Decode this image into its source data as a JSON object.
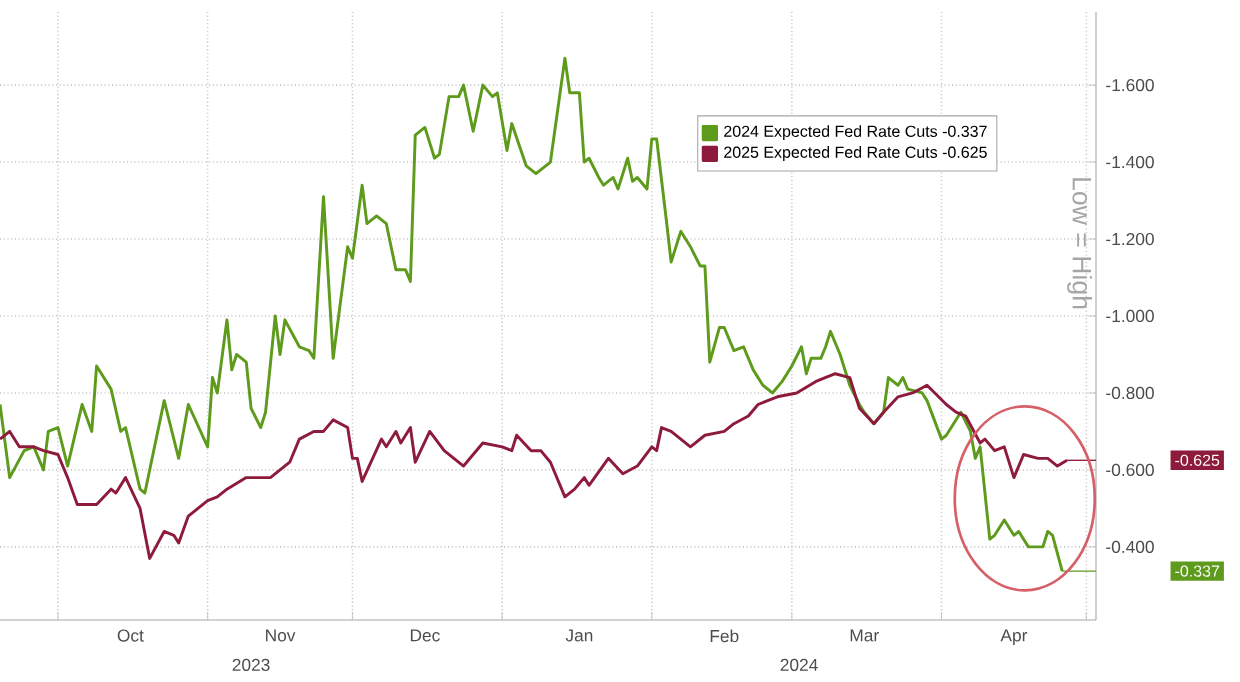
{
  "chart_data": {
    "type": "line",
    "xlim": [
      "2023-09-19",
      "2024-05-03"
    ],
    "ylim": [
      -0.21,
      -1.79
    ],
    "xticks": [
      {
        "value": "2023-10-01",
        "label": null
      },
      {
        "value": "2023-11-01",
        "label": null
      },
      {
        "value": "2023-12-01",
        "label": null
      },
      {
        "value": "2024-01-01",
        "label": null
      },
      {
        "value": "2024-02-01",
        "label": null
      },
      {
        "value": "2024-03-01",
        "label": null
      },
      {
        "value": "2024-04-01",
        "label": null
      },
      {
        "value": "2024-05-01",
        "label": null
      },
      {
        "value": "2023-10-16",
        "label": "Oct"
      },
      {
        "value": "2023-11-16",
        "label": "Nov"
      },
      {
        "value": "2023-12-16",
        "label": "Dec"
      },
      {
        "value": "2024-01-17",
        "label": "Jan"
      },
      {
        "value": "2024-02-16",
        "label": "Feb"
      },
      {
        "value": "2024-03-16",
        "label": "Mar"
      },
      {
        "value": "2024-04-16",
        "label": "Apr"
      }
    ],
    "yticks": [
      {
        "value": -1.6,
        "label": "-1.600"
      },
      {
        "value": -1.4,
        "label": "-1.400"
      },
      {
        "value": -1.2,
        "label": "-1.200"
      },
      {
        "value": -1.0,
        "label": "-1.000"
      },
      {
        "value": -0.8,
        "label": "-0.800"
      },
      {
        "value": -0.6,
        "label": "-0.600"
      },
      {
        "value": -0.4,
        "label": "-0.400"
      }
    ],
    "grid": true,
    "legend": "top right",
    "series": [
      {
        "name": "2024 Expected Fed Rate Cuts  -0.337",
        "color": "#5e9a1c",
        "x": [
          "2023-09-19",
          "2023-09-21",
          "2023-09-24",
          "2023-09-26",
          "2023-09-28",
          "2023-09-29",
          "2023-10-01",
          "2023-10-03",
          "2023-10-06",
          "2023-10-08",
          "2023-10-09",
          "2023-10-12",
          "2023-10-14",
          "2023-10-15",
          "2023-10-18",
          "2023-10-19",
          "2023-10-23",
          "2023-10-26",
          "2023-10-28",
          "2023-11-01",
          "2023-11-02",
          "2023-11-03",
          "2023-11-05",
          "2023-11-06",
          "2023-11-07",
          "2023-11-09",
          "2023-11-10",
          "2023-11-12",
          "2023-11-13",
          "2023-11-15",
          "2023-11-16",
          "2023-11-17",
          "2023-11-20",
          "2023-11-22",
          "2023-11-23",
          "2023-11-25",
          "2023-11-27",
          "2023-11-30",
          "2023-12-01",
          "2023-12-03",
          "2023-12-04",
          "2023-12-06",
          "2023-12-08",
          "2023-12-10",
          "2023-12-12",
          "2023-12-13",
          "2023-12-14",
          "2023-12-16",
          "2023-12-18",
          "2023-12-19",
          "2023-12-21",
          "2023-12-23",
          "2023-12-24",
          "2023-12-26",
          "2023-12-28",
          "2023-12-30",
          "2023-12-31",
          "2024-01-02",
          "2024-01-03",
          "2024-01-06",
          "2024-01-08",
          "2024-01-11",
          "2024-01-14",
          "2024-01-15",
          "2024-01-17",
          "2024-01-18",
          "2024-01-19",
          "2024-01-21",
          "2024-01-22",
          "2024-01-24",
          "2024-01-25",
          "2024-01-27",
          "2024-01-28",
          "2024-01-29",
          "2024-01-31",
          "2024-02-01",
          "2024-02-02",
          "2024-02-04",
          "2024-02-05",
          "2024-02-07",
          "2024-02-09",
          "2024-02-11",
          "2024-02-12",
          "2024-02-13",
          "2024-02-15",
          "2024-02-16",
          "2024-02-18",
          "2024-02-20",
          "2024-02-22",
          "2024-02-24",
          "2024-02-26",
          "2024-02-28",
          "2024-03-01",
          "2024-03-03",
          "2024-03-04",
          "2024-03-05",
          "2024-03-07",
          "2024-03-08",
          "2024-03-09",
          "2024-03-11",
          "2024-03-13",
          "2024-03-15",
          "2024-03-16",
          "2024-03-18",
          "2024-03-20",
          "2024-03-21",
          "2024-03-23",
          "2024-03-24",
          "2024-03-25",
          "2024-03-28",
          "2024-03-29",
          "2024-04-01",
          "2024-04-02",
          "2024-04-05",
          "2024-04-07",
          "2024-04-08",
          "2024-04-09",
          "2024-04-11",
          "2024-04-12",
          "2024-04-14",
          "2024-04-16",
          "2024-04-17",
          "2024-04-19",
          "2024-04-22",
          "2024-04-23",
          "2024-04-24",
          "2024-04-26"
        ],
        "values": [
          -0.77,
          -0.58,
          -0.65,
          -0.66,
          -0.6,
          -0.7,
          -0.71,
          -0.61,
          -0.77,
          -0.7,
          -0.87,
          -0.81,
          -0.7,
          -0.71,
          -0.55,
          -0.54,
          -0.78,
          -0.63,
          -0.77,
          -0.66,
          -0.84,
          -0.8,
          -0.99,
          -0.86,
          -0.9,
          -0.88,
          -0.76,
          -0.71,
          -0.75,
          -1.0,
          -0.9,
          -0.99,
          -0.92,
          -0.91,
          -0.89,
          -1.31,
          -0.89,
          -1.18,
          -1.15,
          -1.34,
          -1.24,
          -1.26,
          -1.24,
          -1.12,
          -1.12,
          -1.09,
          -1.47,
          -1.49,
          -1.41,
          -1.42,
          -1.57,
          -1.57,
          -1.6,
          -1.48,
          -1.6,
          -1.57,
          -1.58,
          -1.43,
          -1.5,
          -1.39,
          -1.37,
          -1.4,
          -1.67,
          -1.58,
          -1.58,
          -1.4,
          -1.41,
          -1.36,
          -1.34,
          -1.36,
          -1.33,
          -1.41,
          -1.35,
          -1.36,
          -1.33,
          -1.46,
          -1.46,
          -1.25,
          -1.14,
          -1.22,
          -1.18,
          -1.13,
          -1.13,
          -0.88,
          -0.97,
          -0.97,
          -0.91,
          -0.92,
          -0.86,
          -0.82,
          -0.8,
          -0.83,
          -0.87,
          -0.92,
          -0.85,
          -0.89,
          -0.89,
          -0.92,
          -0.96,
          -0.9,
          -0.82,
          -0.77,
          -0.75,
          -0.72,
          -0.75,
          -0.84,
          -0.82,
          -0.84,
          -0.81,
          -0.8,
          -0.78,
          -0.68,
          -0.69,
          -0.75,
          -0.7,
          -0.63,
          -0.66,
          -0.42,
          -0.43,
          -0.47,
          -0.43,
          -0.44,
          -0.4,
          -0.4,
          -0.44,
          -0.43,
          -0.337
        ]
      },
      {
        "name": "2025 Expected Fed Rate Cuts  -0.625",
        "color": "#8e1b3b",
        "x": [
          "2023-09-19",
          "2023-09-21",
          "2023-09-23",
          "2023-09-26",
          "2023-09-28",
          "2023-10-01",
          "2023-10-03",
          "2023-10-05",
          "2023-10-09",
          "2023-10-12",
          "2023-10-13",
          "2023-10-15",
          "2023-10-18",
          "2023-10-20",
          "2023-10-23",
          "2023-10-25",
          "2023-10-26",
          "2023-10-28",
          "2023-11-01",
          "2023-11-03",
          "2023-11-05",
          "2023-11-09",
          "2023-11-12",
          "2023-11-14",
          "2023-11-18",
          "2023-11-20",
          "2023-11-23",
          "2023-11-25",
          "2023-11-27",
          "2023-11-30",
          "2023-12-01",
          "2023-12-02",
          "2023-12-03",
          "2023-12-07",
          "2023-12-08",
          "2023-12-10",
          "2023-12-11",
          "2023-12-13",
          "2023-12-14",
          "2023-12-17",
          "2023-12-20",
          "2023-12-24",
          "2023-12-28",
          "2024-01-01",
          "2024-01-03",
          "2024-01-04",
          "2024-01-07",
          "2024-01-09",
          "2024-01-11",
          "2024-01-14",
          "2024-01-16",
          "2024-01-18",
          "2024-01-19",
          "2024-01-23",
          "2024-01-26",
          "2024-01-29",
          "2024-02-01",
          "2024-02-02",
          "2024-02-03",
          "2024-02-05",
          "2024-02-09",
          "2024-02-12",
          "2024-02-16",
          "2024-02-18",
          "2024-02-21",
          "2024-02-23",
          "2024-02-25",
          "2024-02-27",
          "2024-03-02",
          "2024-03-06",
          "2024-03-10",
          "2024-03-13",
          "2024-03-15",
          "2024-03-18",
          "2024-03-20",
          "2024-03-23",
          "2024-03-26",
          "2024-03-29",
          "2024-04-02",
          "2024-04-04",
          "2024-04-06",
          "2024-04-09",
          "2024-04-10",
          "2024-04-12",
          "2024-04-14",
          "2024-04-16",
          "2024-04-18",
          "2024-04-21",
          "2024-04-23",
          "2024-04-25",
          "2024-04-27"
        ],
        "values": [
          -0.68,
          -0.7,
          -0.66,
          -0.66,
          -0.65,
          -0.64,
          -0.58,
          -0.51,
          -0.51,
          -0.55,
          -0.54,
          -0.58,
          -0.5,
          -0.37,
          -0.44,
          -0.43,
          -0.41,
          -0.48,
          -0.52,
          -0.53,
          -0.55,
          -0.58,
          -0.58,
          -0.58,
          -0.62,
          -0.68,
          -0.7,
          -0.7,
          -0.73,
          -0.71,
          -0.63,
          -0.63,
          -0.57,
          -0.68,
          -0.66,
          -0.7,
          -0.67,
          -0.71,
          -0.62,
          -0.7,
          -0.65,
          -0.61,
          -0.67,
          -0.66,
          -0.65,
          -0.69,
          -0.65,
          -0.65,
          -0.62,
          -0.53,
          -0.55,
          -0.58,
          -0.56,
          -0.63,
          -0.59,
          -0.61,
          -0.66,
          -0.65,
          -0.71,
          -0.7,
          -0.66,
          -0.69,
          -0.7,
          -0.72,
          -0.74,
          -0.77,
          -0.78,
          -0.79,
          -0.8,
          -0.83,
          -0.85,
          -0.84,
          -0.76,
          -0.72,
          -0.75,
          -0.79,
          -0.8,
          -0.82,
          -0.77,
          -0.75,
          -0.74,
          -0.67,
          -0.68,
          -0.65,
          -0.66,
          -0.58,
          -0.64,
          -0.63,
          -0.63,
          -0.61,
          -0.625
        ]
      }
    ],
    "annotations": [
      "-0.337",
      "-0.625",
      "Low = High",
      "2023",
      "2024"
    ]
  }
}
